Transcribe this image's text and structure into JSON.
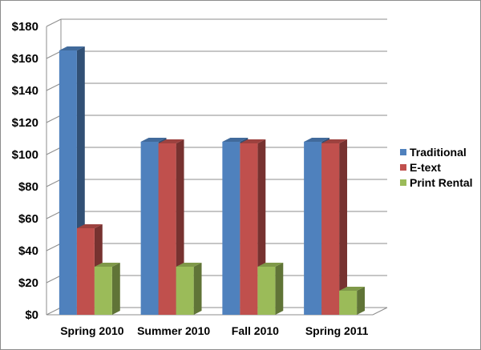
{
  "chart_data": {
    "type": "bar",
    "title": "",
    "xlabel": "",
    "ylabel": "",
    "categories": [
      "Spring 2010",
      "Summer 2010",
      "Fall 2010",
      "Spring 2011"
    ],
    "series": [
      {
        "name": "Traditional",
        "color": "#4F81BD",
        "values": [
          165,
          108,
          108,
          108
        ]
      },
      {
        "name": "E-text",
        "color": "#C0504D",
        "values": [
          54,
          107,
          107,
          107
        ]
      },
      {
        "name": "Print Rental",
        "color": "#9BBB59",
        "values": [
          30,
          30,
          30,
          15
        ]
      }
    ],
    "ylim": [
      0,
      180
    ],
    "yticks": [
      0,
      20,
      40,
      60,
      80,
      100,
      120,
      140,
      160,
      180
    ],
    "ytick_labels": [
      "$0",
      "$20",
      "$40",
      "$60",
      "$80",
      "$100",
      "$120",
      "$140",
      "$160",
      "$180"
    ],
    "grid": true,
    "legend": "right",
    "style": "3d-clustered-column"
  }
}
